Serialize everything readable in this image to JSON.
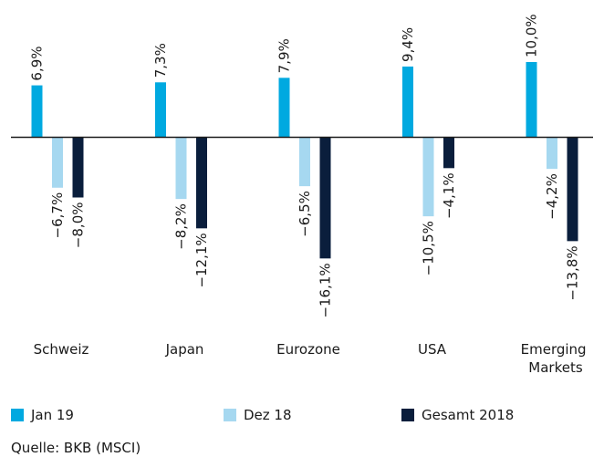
{
  "chart_data": {
    "type": "bar",
    "categories": [
      "Schweiz",
      "Japan",
      "Eurozone",
      "USA",
      "Emerging Markets"
    ],
    "series": [
      {
        "name": "Jan 19",
        "color": "#00a9e0",
        "values": [
          6.9,
          7.3,
          7.9,
          9.4,
          10.0
        ],
        "value_labels": [
          "6,9%",
          "7,3%",
          "7,9%",
          "9,4%",
          "10,0%"
        ]
      },
      {
        "name": "Dez 18",
        "color": "#a6d8f0",
        "values": [
          -6.7,
          -8.2,
          -6.5,
          -10.5,
          -4.2
        ],
        "value_labels": [
          "−6,7%",
          "−8,2%",
          "−6,5%",
          "−10,5%",
          "−4,2%"
        ]
      },
      {
        "name": "Gesamt 2018",
        "color": "#0a1e3c",
        "values": [
          -8.0,
          -12.1,
          -16.1,
          -4.1,
          -13.8
        ],
        "value_labels": [
          "−8,0%",
          "−12,1%",
          "−16,1%",
          "−4,1%",
          "−13,8%"
        ]
      }
    ],
    "ylim": [
      -18,
      18
    ],
    "source": "Quelle: BKB (MSCI)"
  }
}
